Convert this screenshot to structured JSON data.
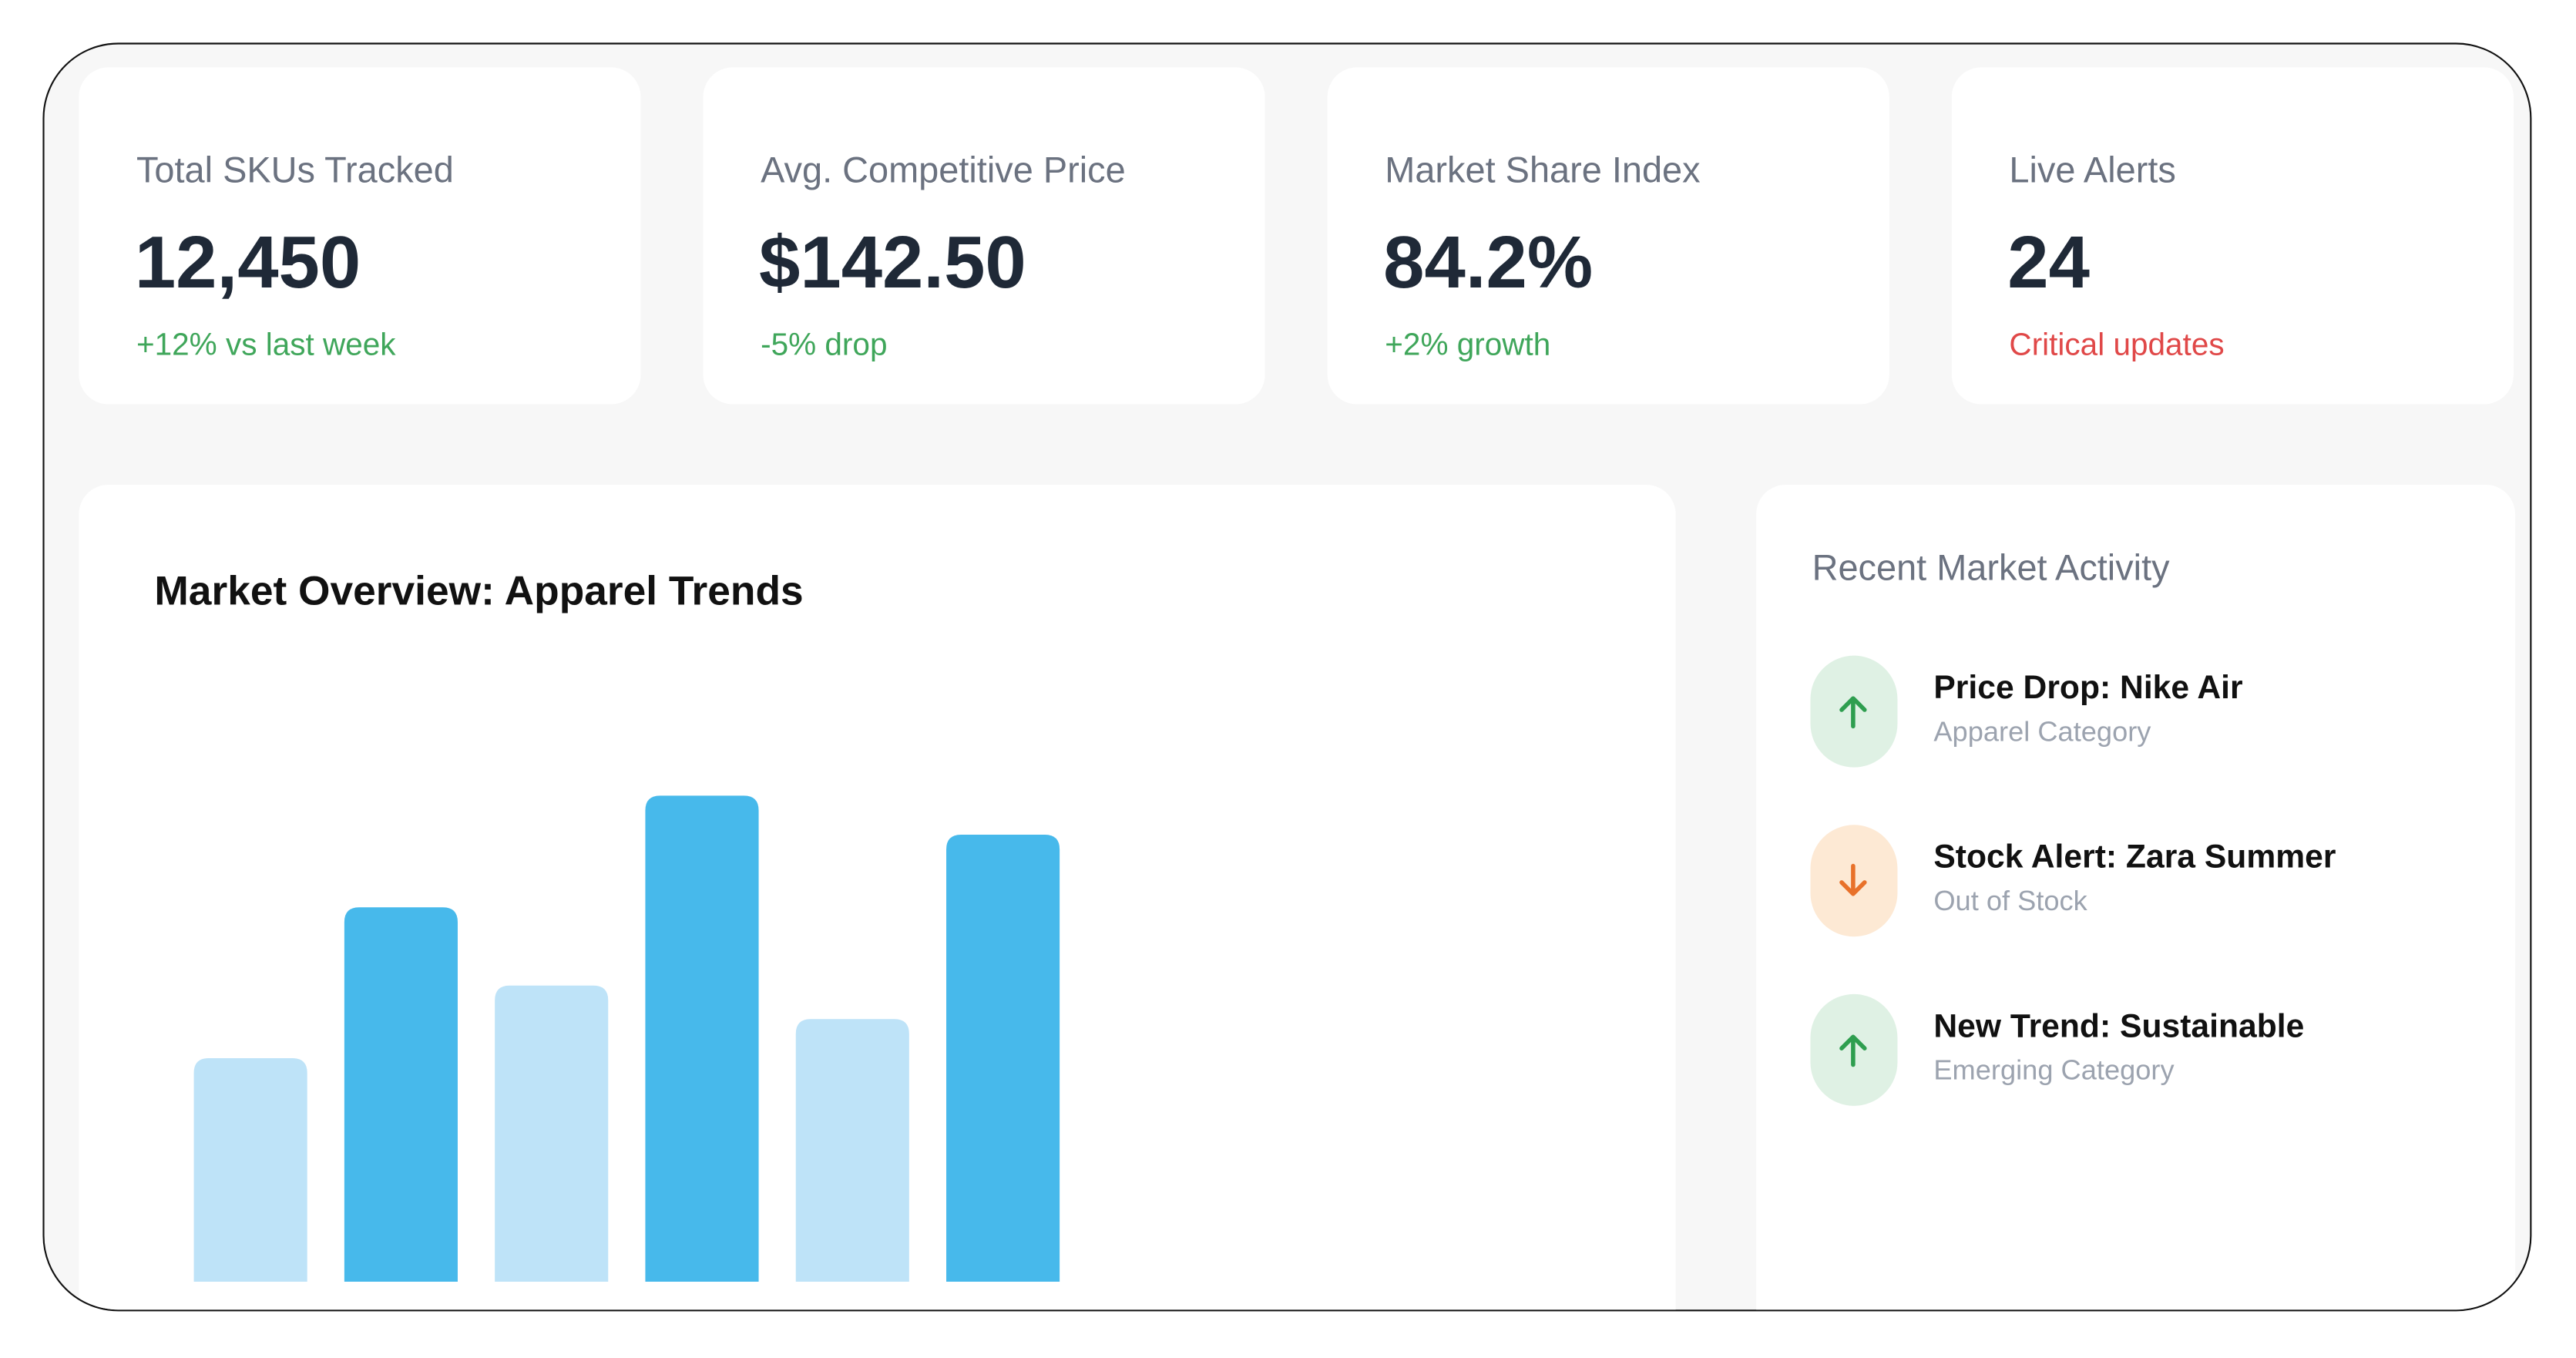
{
  "cards": [
    {
      "label": "Total SKUs Tracked",
      "value": "12,450",
      "change": "+12% vs last week",
      "color": "#3fa65a"
    },
    {
      "label": "Avg. Competitive Price",
      "value": "$142.50",
      "change": "-5% drop",
      "color": "#3fa65a"
    },
    {
      "label": "Market Share Index",
      "value": "84.2%",
      "change": "+2% growth",
      "color": "#3fa65a"
    },
    {
      "label": "Live Alerts",
      "value": "24",
      "change": "Critical updates",
      "color": "#e04848"
    }
  ],
  "chart_data": {
    "type": "bar",
    "title": "Market Overview: Apparel Trends",
    "values": [
      40,
      67,
      53,
      87,
      47,
      80
    ],
    "colors": [
      "#bee3f8",
      "#47b9eb",
      "#bee3f8",
      "#47b9eb",
      "#bee3f8",
      "#47b9eb"
    ],
    "ylim": [
      0,
      100
    ]
  },
  "activity": {
    "title": "Recent Market Activity",
    "items": [
      {
        "title": "Price Drop: Nike Air",
        "subtitle": "Apparel Category"
      },
      {
        "title": "Stock Alert: Zara Summer",
        "subtitle": "Out of Stock"
      },
      {
        "title": "New Trend: Sustainable",
        "subtitle": "Emerging Category"
      }
    ]
  }
}
